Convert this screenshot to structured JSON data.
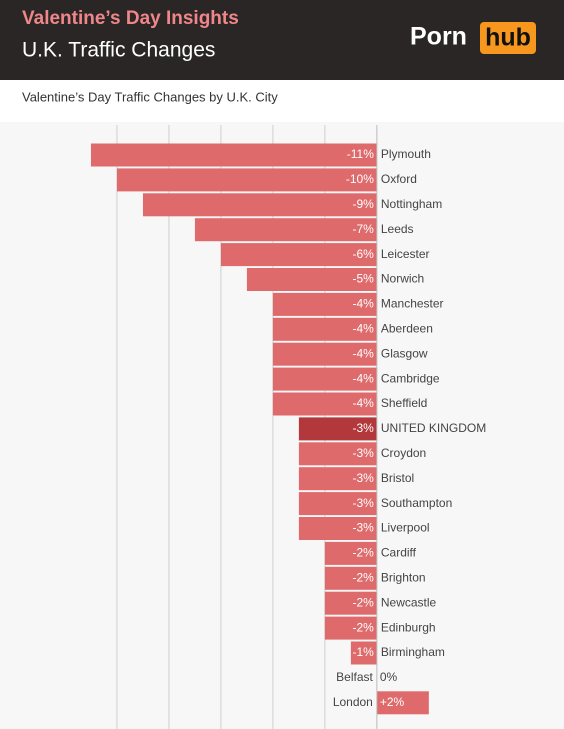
{
  "header": {
    "title": "Valentine’s Day Insights",
    "subtitle": "U.K. Traffic Changes",
    "logo": {
      "part1": "Porn",
      "part2": "hub"
    }
  },
  "chart_data": {
    "type": "hbar",
    "title": "Valentine’s Day Traffic Changes by U.K. City",
    "categories": [
      "Plymouth",
      "Oxford",
      "Nottingham",
      "Leeds",
      "Leicester",
      "Norwich",
      "Manchester",
      "Aberdeen",
      "Glasgow",
      "Cambridge",
      "Sheffield",
      "UNITED KINGDOM",
      "Croydon",
      "Bristol",
      "Southampton",
      "Liverpool",
      "Cardiff",
      "Brighton",
      "Newcastle",
      "Edinburgh",
      "Birmingham",
      "Belfast",
      "London"
    ],
    "values": [
      -11,
      -10,
      -9,
      -7,
      -6,
      -5,
      -4,
      -4,
      -4,
      -4,
      -4,
      -3,
      -3,
      -3,
      -3,
      -3,
      -2,
      -2,
      -2,
      -2,
      -1,
      0,
      2
    ],
    "value_labels": [
      "-11%",
      "-10%",
      "-9%",
      "-7%",
      "-6%",
      "-5%",
      "-4%",
      "-4%",
      "-4%",
      "-4%",
      "-4%",
      "-3%",
      "-3%",
      "-3%",
      "-3%",
      "-3%",
      "-2%",
      "-2%",
      "-2%",
      "-2%",
      "-1%",
      "0%",
      "+2%"
    ],
    "color": "#de6a6c",
    "highlight": {
      "index": 11,
      "color": "#b2383b"
    },
    "xlim": [
      -14.5,
      7.2
    ],
    "grid_x": [
      -10,
      -8,
      -6,
      -4,
      -2
    ]
  }
}
